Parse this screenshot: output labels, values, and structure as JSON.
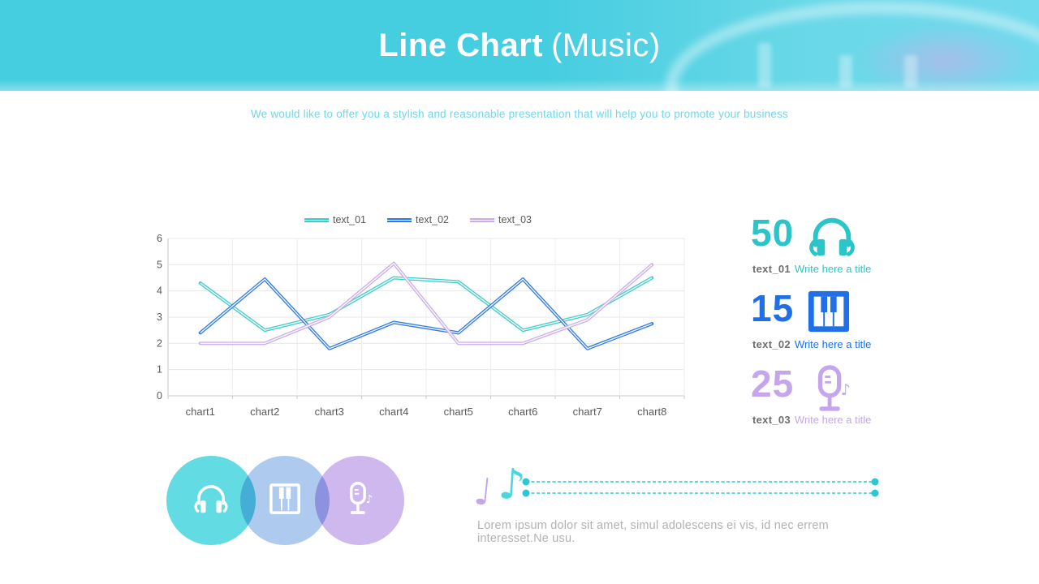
{
  "header": {
    "title_bold": "Line Chart",
    "title_light": "(Music)",
    "subtitle": "We would like to offer you a stylish and reasonable presentation that will help you to promote your business",
    "banner_color": "#45cde0"
  },
  "chart_data": {
    "type": "line",
    "categories": [
      "chart1",
      "chart2",
      "chart3",
      "chart4",
      "chart5",
      "chart6",
      "chart7",
      "chart8"
    ],
    "series": [
      {
        "name": "text_01",
        "color": "#3fccc9",
        "values": [
          4.3,
          2.5,
          3.1,
          4.5,
          4.35,
          2.5,
          3.1,
          4.5
        ]
      },
      {
        "name": "text_02",
        "color": "#2e79e8",
        "values": [
          2.4,
          4.45,
          1.8,
          2.8,
          2.4,
          4.45,
          1.8,
          2.75
        ]
      },
      {
        "name": "text_03",
        "color": "#c9ade9",
        "values": [
          2.0,
          2.0,
          3.0,
          5.05,
          2.0,
          2.0,
          2.9,
          5.0
        ]
      }
    ],
    "ylim": [
      0,
      6
    ],
    "yticks": [
      0,
      1,
      2,
      3,
      4,
      5,
      6
    ],
    "grid": true,
    "legend_position": "top",
    "axis_text_color": "#595959"
  },
  "stats": [
    {
      "value": "50",
      "label": "text_01",
      "title": "Write here a title",
      "color": "#2bc4c8",
      "icon": "headphones-icon"
    },
    {
      "value": "15",
      "label": "text_02",
      "title": "Write here a title",
      "color": "#1e6fe8",
      "icon": "piano-icon"
    },
    {
      "value": "25",
      "label": "text_03",
      "title": "Write here a title",
      "color": "#c5a6ec",
      "icon": "microphone-icon"
    }
  ],
  "circles": [
    {
      "icon": "headphones-icon",
      "color": "#63dbe3"
    },
    {
      "icon": "piano-icon",
      "color": "#aecbef"
    },
    {
      "icon": "microphone-icon",
      "color": "#cfb8ed"
    }
  ],
  "footer": {
    "note_purple": "♩",
    "note_teal": "♪",
    "note_purple_color": "#c5a6ec",
    "note_teal_color": "#49d6dc",
    "dash_color": "#2fc6d4",
    "lorem": "Lorem ipsum dolor sit amet, simul adolescens ei vis, id nec errem interesset.Ne usu."
  }
}
